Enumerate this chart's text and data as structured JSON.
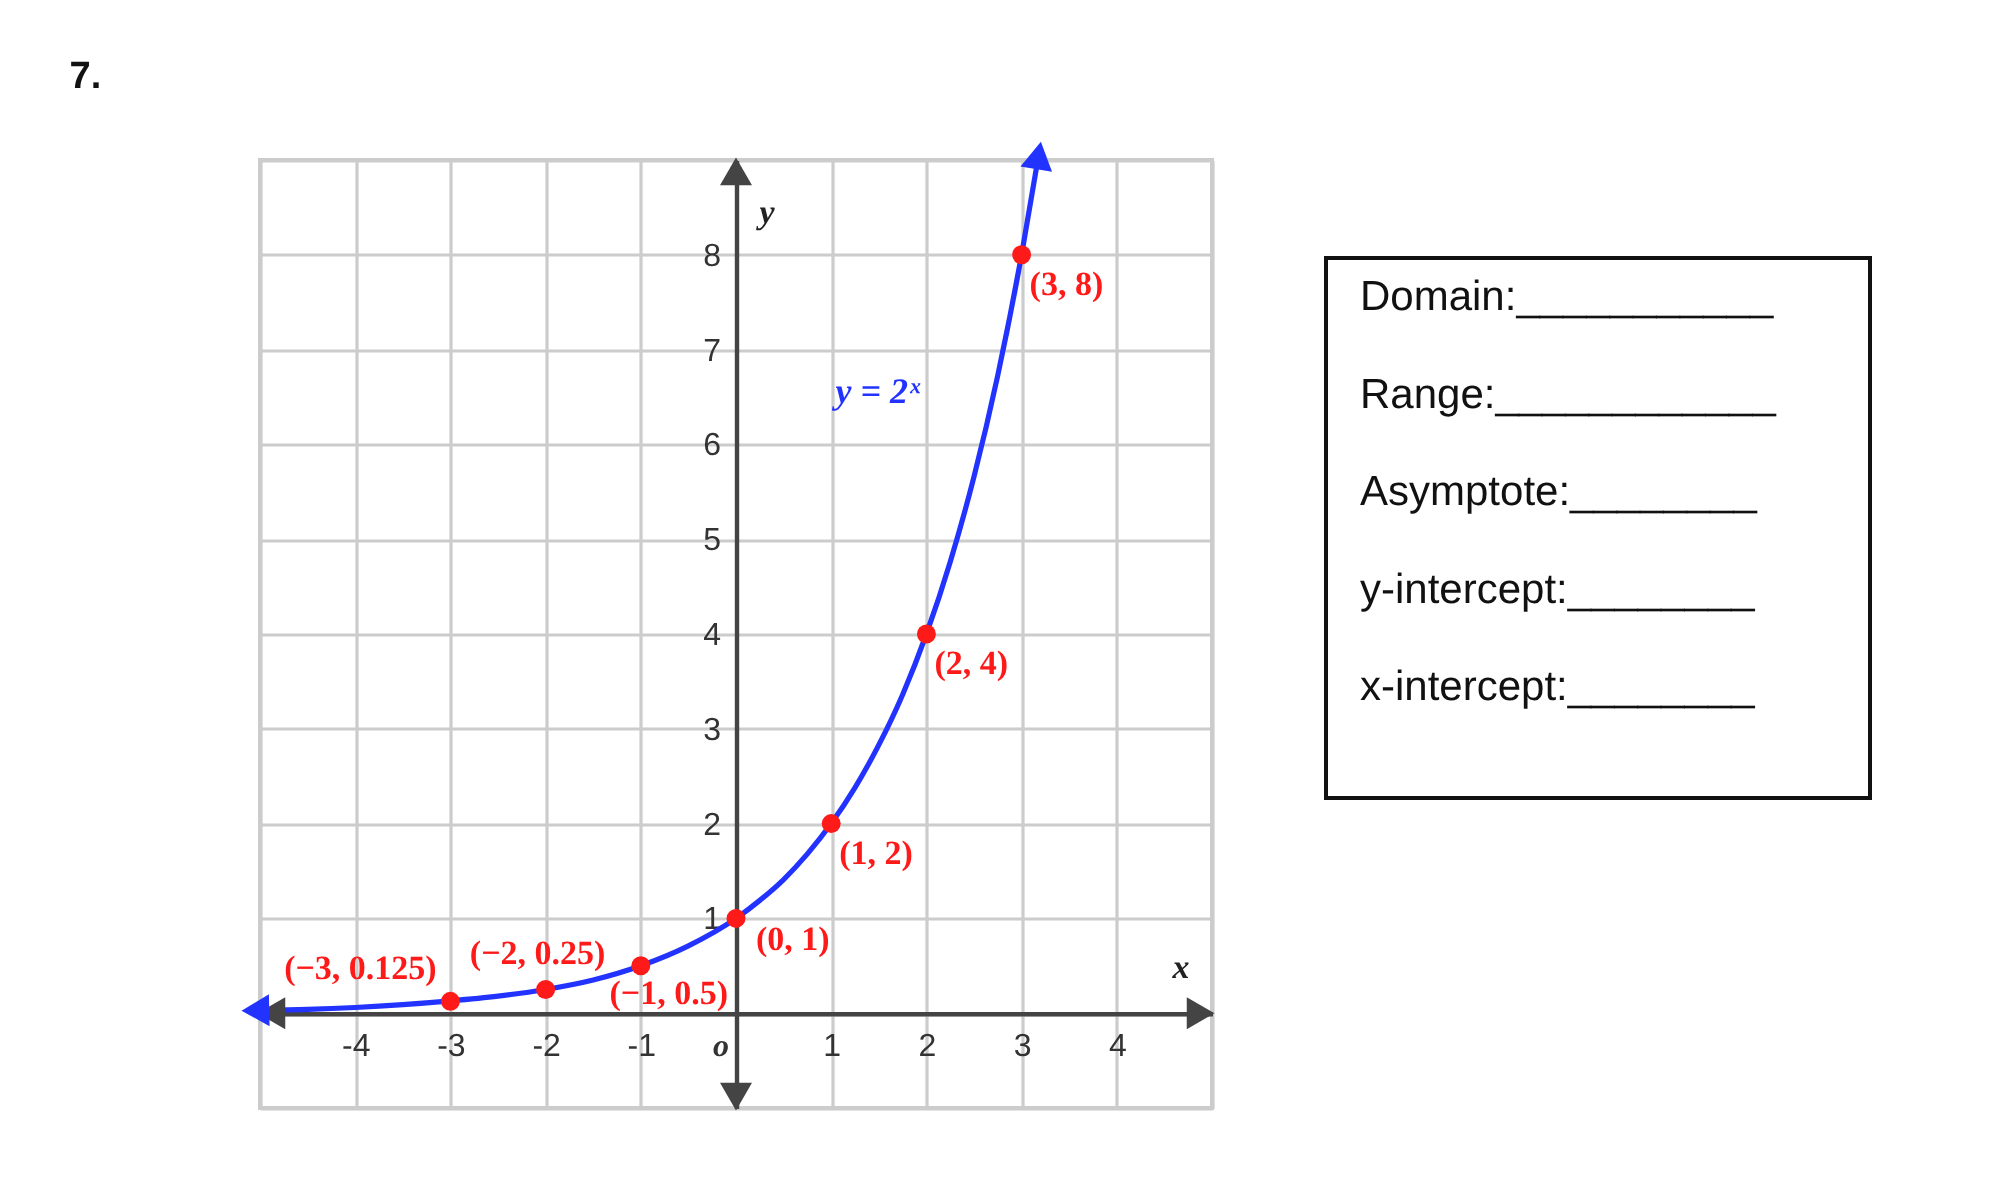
{
  "chart_data": [
    {
      "type": "line",
      "title": "7.",
      "xlabel": "x",
      "ylabel": "y",
      "xlim": [
        -5,
        5
      ],
      "ylim": [
        -1,
        9
      ],
      "xticks": [
        {
          "value": -5,
          "label": null
        },
        -4,
        -3,
        -2,
        -1,
        {
          "value": 0,
          "label": "o"
        },
        1,
        2,
        3,
        4,
        {
          "value": 5,
          "label": null
        }
      ],
      "yticks": [
        {
          "value": -1,
          "label": null
        },
        {
          "value": 0,
          "label": null
        },
        1,
        2,
        3,
        4,
        5,
        6,
        7,
        8,
        {
          "value": 9,
          "label": null
        }
      ],
      "grid": true,
      "legend": false,
      "series": [
        {
          "name": "y = 2ˣ",
          "type": "line",
          "color": "#2233ff",
          "marker": "none",
          "x": [
            -5,
            -4.5,
            -4,
            -3.5,
            -3,
            -2.5,
            -2,
            -1.5,
            -1,
            -0.5,
            0,
            0.25,
            0.5,
            0.75,
            1,
            1.25,
            1.5,
            1.75,
            2,
            2.25,
            2.5,
            2.75,
            3,
            3.17
          ],
          "values": [
            0.03,
            0.04,
            0.06,
            0.09,
            0.13,
            0.18,
            0.25,
            0.35,
            0.5,
            0.71,
            1,
            1.19,
            1.41,
            1.68,
            2,
            2.38,
            2.83,
            3.36,
            4,
            4.76,
            5.66,
            6.73,
            8,
            9
          ]
        },
        {
          "type": "scatter",
          "color": "#ff1a1a",
          "marker": "circle",
          "x": [
            -3,
            -2,
            -1,
            0,
            1,
            2,
            3
          ],
          "values": [
            0.125,
            0.25,
            0.5,
            1,
            2,
            4,
            8
          ],
          "value_labels": [
            "(−3, 0.125)",
            "(−2, 0.25)",
            "(−1, 0.5)",
            "(0, 1)",
            "(1, 2)",
            "(2, 4)",
            "(3, 8)"
          ]
        }
      ]
    },
    {
      "type": "other",
      "annotations": [
        "Domain:___________",
        "Range:____________",
        "Asymptote:________",
        "y-intercept:________",
        "x-intercept:________"
      ]
    }
  ]
}
